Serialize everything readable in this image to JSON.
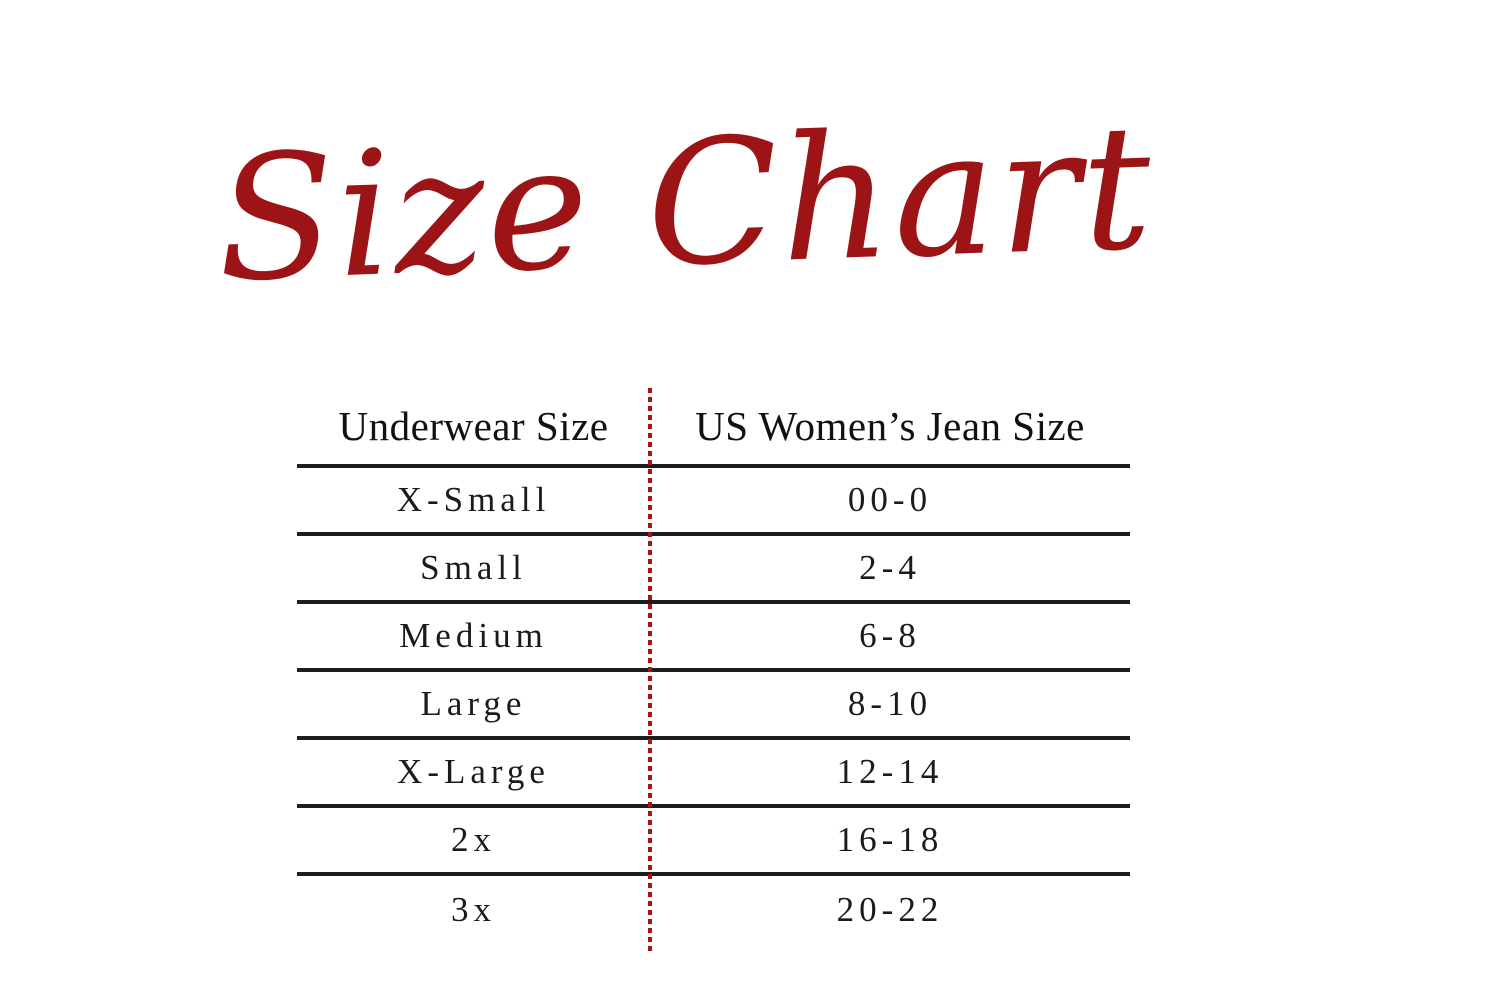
{
  "page": {
    "title": "Size Chart",
    "colors": {
      "title_red": "#9C1416",
      "divider_dot_red": "#AC1414",
      "rule_black": "#1d1d1d",
      "background": "#ffffff"
    }
  },
  "table": {
    "columns": {
      "underwear": "Underwear Size",
      "jeans": "US Women’s Jean Size"
    },
    "rows": [
      {
        "underwear_size": "X-Small",
        "jean_size": "00-0"
      },
      {
        "underwear_size": "Small",
        "jean_size": "2-4"
      },
      {
        "underwear_size": "Medium",
        "jean_size": "6-8"
      },
      {
        "underwear_size": "Large",
        "jean_size": "8-10"
      },
      {
        "underwear_size": "X-Large",
        "jean_size": "12-14"
      },
      {
        "underwear_size": "2x",
        "jean_size": "16-18"
      },
      {
        "underwear_size": "3x",
        "jean_size": "20-22"
      }
    ]
  }
}
